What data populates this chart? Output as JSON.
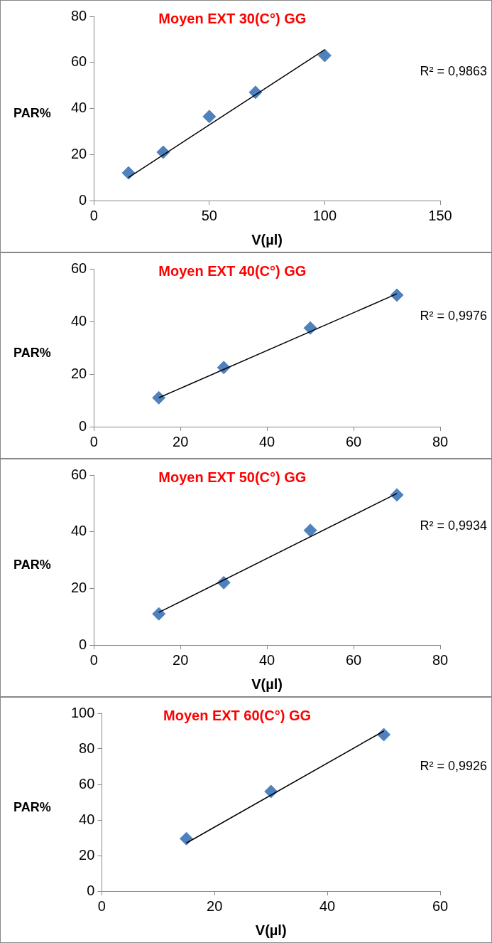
{
  "chart_data": [
    {
      "type": "scatter",
      "title": "Moyen EXT 30(C°) GG",
      "xlabel": "V(µl)",
      "ylabel": "PAR%",
      "xlim": [
        0,
        150
      ],
      "xticks": [
        0,
        50,
        100,
        150
      ],
      "ylim": [
        0,
        80
      ],
      "yticks": [
        0,
        20,
        40,
        60,
        80
      ],
      "grid": false,
      "legend": false,
      "marker": "diamond",
      "annotations": [
        "R² = 0,9863"
      ],
      "series": [
        {
          "type": "scatter",
          "color": "#4f81bd",
          "x": [
            15,
            30,
            50,
            70,
            100
          ],
          "values": [
            12,
            21,
            36.5,
            47,
            63
          ]
        },
        {
          "type": "line",
          "marker": "none",
          "color": "#000000",
          "x": [
            15,
            100
          ],
          "values": [
            10,
            65.5
          ]
        }
      ]
    },
    {
      "type": "scatter",
      "title": "Moyen EXT 40(C°) GG",
      "ylabel": "PAR%",
      "xlim": [
        0,
        80
      ],
      "xticks": [
        0,
        20,
        40,
        60,
        80
      ],
      "ylim": [
        0,
        60
      ],
      "yticks": [
        0,
        20,
        40,
        60
      ],
      "grid": false,
      "legend": false,
      "marker": "diamond",
      "annotations": [
        "R² = 0,9976"
      ],
      "series": [
        {
          "type": "scatter",
          "color": "#4f81bd",
          "x": [
            15,
            30,
            50,
            70
          ],
          "values": [
            11,
            22.5,
            37.5,
            50
          ]
        },
        {
          "type": "line",
          "marker": "none",
          "color": "#000000",
          "x": [
            15,
            70
          ],
          "values": [
            11,
            50.5
          ]
        }
      ]
    },
    {
      "type": "scatter",
      "title": "Moyen EXT 50(C°) GG",
      "xlabel": "V(µl)",
      "ylabel": "PAR%",
      "xlim": [
        0,
        80
      ],
      "xticks": [
        0,
        20,
        40,
        60,
        80
      ],
      "ylim": [
        0,
        60
      ],
      "yticks": [
        0,
        20,
        40,
        60
      ],
      "grid": false,
      "legend": false,
      "marker": "diamond",
      "annotations": [
        "R² = 0,9934"
      ],
      "series": [
        {
          "type": "scatter",
          "color": "#4f81bd",
          "x": [
            15,
            30,
            50,
            70
          ],
          "values": [
            11,
            22,
            40.5,
            53
          ]
        },
        {
          "type": "line",
          "marker": "none",
          "color": "#000000",
          "x": [
            15,
            70
          ],
          "values": [
            11.5,
            53.5
          ]
        }
      ]
    },
    {
      "type": "scatter",
      "title": "Moyen EXT 60(C°) GG",
      "xlabel": "V(µl)",
      "ylabel": "PAR%",
      "xlim": [
        0,
        60
      ],
      "xticks": [
        0,
        20,
        40,
        60
      ],
      "ylim": [
        0,
        100
      ],
      "yticks": [
        0,
        20,
        40,
        60,
        80,
        100
      ],
      "grid": false,
      "legend": false,
      "marker": "diamond",
      "annotations": [
        "R² = 0,9926"
      ],
      "series": [
        {
          "type": "scatter",
          "color": "#4f81bd",
          "x": [
            15,
            30,
            50
          ],
          "values": [
            29.5,
            56,
            88
          ]
        },
        {
          "type": "line",
          "marker": "none",
          "color": "#000000",
          "x": [
            15,
            50
          ],
          "values": [
            27,
            90
          ]
        }
      ]
    }
  ]
}
